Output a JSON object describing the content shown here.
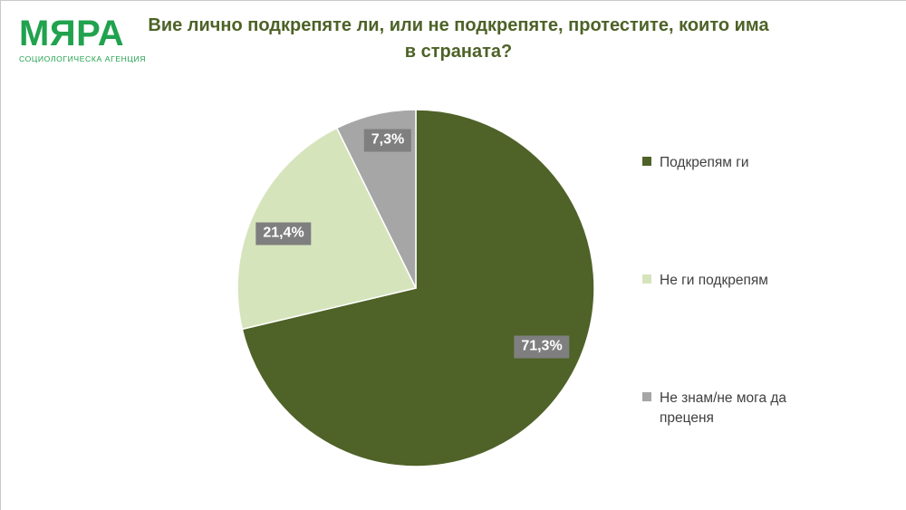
{
  "logo": {
    "name": "МЯРА",
    "subtitle": "СОЦИОЛОГИЧЕСКА АГЕНЦИЯ",
    "color": "#21a24e"
  },
  "header": {
    "title_line1": "Вие лично подкрепяте ли, или не подкрепяте, протестите, които има",
    "title_line2": "в страната?",
    "color": "#4d6227"
  },
  "chart_data": {
    "type": "pie",
    "title": "Вие лично подкрепяте ли, или не подкрепяте, протестите, които има в страната?",
    "start_angle_deg": 0,
    "direction": "clockwise",
    "legend_position": "right",
    "slices": [
      {
        "label": "Подкрепям ги",
        "value": 71.3,
        "display": "71,3%",
        "color": "#4f6228"
      },
      {
        "label": "Не ги подкрепям",
        "value": 21.4,
        "display": "21,4%",
        "color": "#d6e4bc"
      },
      {
        "label": "Не знам/не мога да преценя",
        "value": 7.3,
        "display": "7,3%",
        "color": "#a6a6a6"
      }
    ],
    "slice_border_color": "#ffffff",
    "data_label_badge_color": "#7f7f7f",
    "data_label_text_color": "#ffffff"
  }
}
